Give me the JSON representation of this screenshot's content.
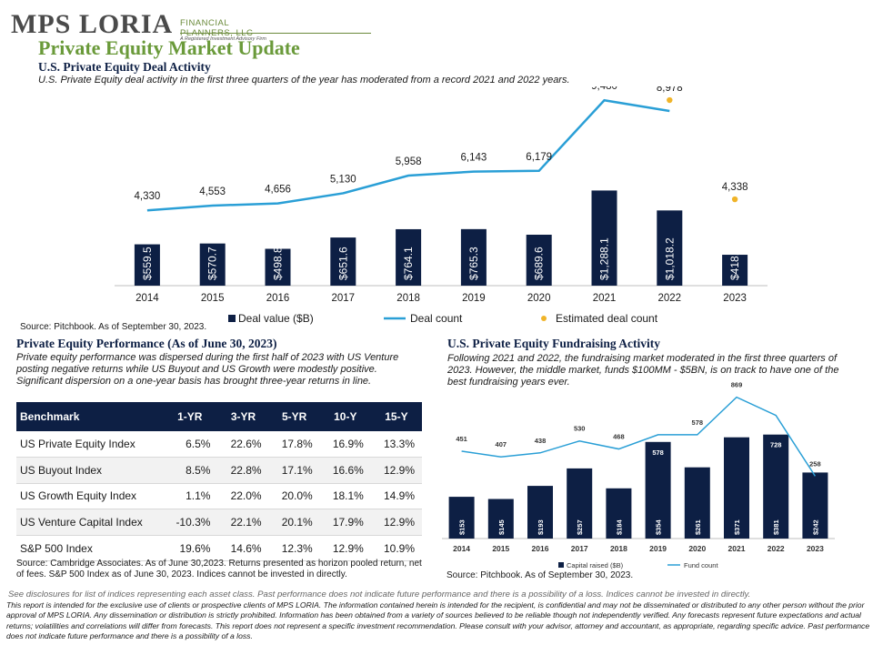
{
  "logo": {
    "name": "MPS LORIA",
    "suffix": "FINANCIAL PLANNERS, LLC",
    "tagline": "A Registered Investment Advisory Firm"
  },
  "page_title": "Private Equity Market Update",
  "deal_section": {
    "title": "U.S. Private Equity Deal Activity",
    "desc": "U.S. Private Equity deal activity in the first three quarters of the year has moderated from a record 2021 and 2022 years.",
    "source": "Source: Pitchbook.  As of September 30, 2023."
  },
  "perf_section": {
    "title": "Private Equity Performance (As of June 30, 2023)",
    "desc": "Private equity performance was dispersed during the first half of 2023 with US Venture posting negative returns while US Buyout and US Growth were modestly positive. Significant dispersion on a one-year basis has brought three-year returns in line.",
    "source": "Source: Cambridge Associates. As of June 30,2023. Returns presented as horizon pooled return, net of fees. S&P 500 Index as of June 30, 2023. Indices cannot be invested in directly.",
    "headers": [
      "Benchmark",
      "1-YR",
      "3-YR",
      "5-YR",
      "10-Y",
      "15-Y"
    ],
    "rows": [
      [
        "US Private Equity Index",
        "6.5%",
        "22.6%",
        "17.8%",
        "16.9%",
        "13.3%"
      ],
      [
        "US Buyout Index",
        "8.5%",
        "22.8%",
        "17.1%",
        "16.6%",
        "12.9%"
      ],
      [
        "US Growth Equity Index",
        "1.1%",
        "22.0%",
        "20.0%",
        "18.1%",
        "14.9%"
      ],
      [
        "US Venture Capital Index",
        "-10.3%",
        "22.1%",
        "20.1%",
        "17.9%",
        "12.9%"
      ],
      [
        "S&P 500 Index",
        "19.6%",
        "14.6%",
        "12.3%",
        "12.9%",
        "10.9%"
      ]
    ]
  },
  "fund_section": {
    "title": "U.S. Private Equity Fundraising Activity",
    "desc": "Following 2021 and 2022, the fundraising market moderated in the first three quarters of 2023. However, the middle market, funds $100MM - $5BN, is on track to have one of the best fundraising years ever.",
    "source": "Source: Pitchbook.  As of September 30, 2023."
  },
  "disclaimer": {
    "lead": "See disclosures for list of indices representing each asset class. Past performance does not indicate future performance and there is a possibility of a loss. Indices cannot be invested in directly.",
    "body": "This report is intended for the exclusive use of clients or prospective clients of MPS LORIA. The information contained herein is intended for the recipient, is confidential and may not be disseminated or distributed to any other person without the prior approval of MPS LORIA. Any dissemination or distribution is strictly prohibited. Information has been obtained from a variety of sources believed to be reliable though not independently verified. Any forecasts represent future expectations and actual returns; volatilities and correlations will differ from forecasts. This report does not represent a specific investment recommendation. Please consult with your advisor, attorney and accountant, as appropriate, regarding specific advice. Past performance does not indicate future performance and there is a possibility of a loss."
  },
  "colors": {
    "bar": "#0d1f44",
    "line": "#2a9fd6",
    "estimate": "#f0b429",
    "title_green": "#6a9a3a"
  },
  "chart_data": [
    {
      "type": "bar",
      "categories": [
        "2014",
        "2015",
        "2016",
        "2017",
        "2018",
        "2019",
        "2020",
        "2021",
        "2022",
        "2023"
      ],
      "series": [
        {
          "name": "Deal value ($B)",
          "kind": "bar",
          "values": [
            559.5,
            570.7,
            498.8,
            651.6,
            764.1,
            765.3,
            689.6,
            1288.1,
            1018.2,
            418.3
          ],
          "labels": [
            "$559.5",
            "$570.7",
            "$498.8",
            "$651.6",
            "$764.1",
            "$765.3",
            "$689.6",
            "$1,288.1",
            "$1,018.2",
            "$418.3"
          ]
        },
        {
          "name": "Deal count",
          "kind": "line",
          "values": [
            4330,
            4553,
            4656,
            5130,
            5958,
            6143,
            6179,
            9480,
            8978,
            null
          ],
          "labels": [
            "4,330",
            "4,553",
            "4,656",
            "5,130",
            "5,958",
            "6,143",
            "6,179",
            "9,480",
            "",
            ""
          ]
        },
        {
          "name": "Estimated deal count",
          "kind": "scatter",
          "values": [
            null,
            null,
            null,
            null,
            null,
            null,
            null,
            null,
            8978,
            4338
          ],
          "labels": [
            "",
            "",
            "",
            "",
            "",
            "",
            "",
            "",
            "8,978",
            "4,338"
          ]
        }
      ],
      "legend": "bottom",
      "grid": false
    },
    {
      "type": "bar",
      "categories": [
        "2014",
        "2015",
        "2016",
        "2017",
        "2018",
        "2019",
        "2020",
        "2021",
        "2022",
        "2023"
      ],
      "series": [
        {
          "name": "Capital raised ($B)",
          "kind": "bar",
          "values": [
            153,
            145,
            193,
            257,
            184,
            354,
            261,
            371,
            381,
            242
          ],
          "labels": [
            "$153",
            "$145",
            "$193",
            "$257",
            "$184",
            "$354",
            "$261",
            "$371",
            "$381",
            "$242"
          ]
        },
        {
          "name": "Fund count",
          "kind": "line",
          "values": [
            451,
            407,
            438,
            530,
            468,
            578,
            578,
            869,
            728,
            258
          ],
          "labels": [
            "451",
            "407",
            "438",
            "530",
            "468",
            "578",
            "578",
            "869",
            "728",
            "258"
          ]
        }
      ],
      "legend": "bottom",
      "grid": false
    }
  ]
}
